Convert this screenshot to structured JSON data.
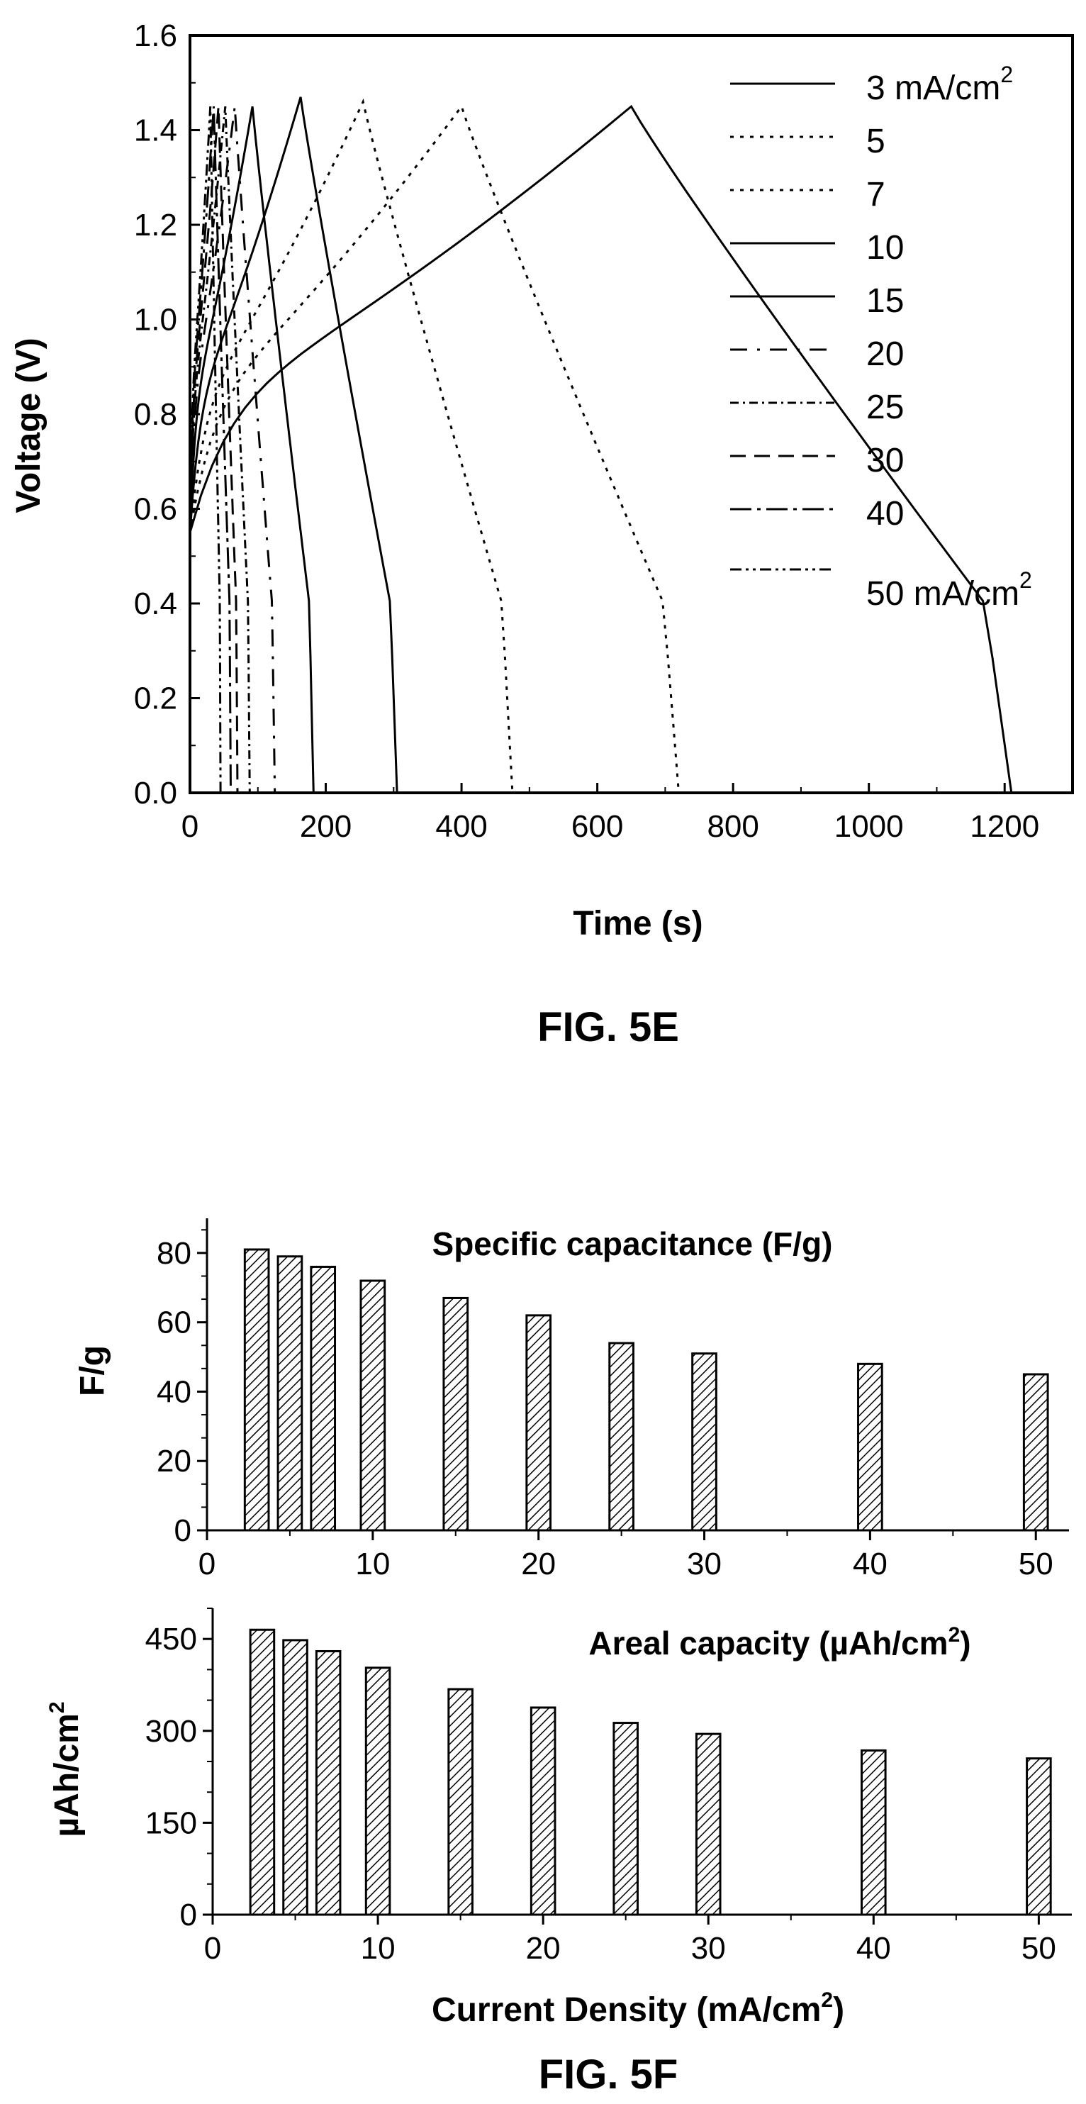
{
  "figures": {
    "fig5e_caption": "FIG. 5E",
    "fig5f_caption": "FIG. 5F"
  },
  "chart_data": [
    {
      "type": "line",
      "xlabel": "Time (s)",
      "ylabel": "Voltage (V)",
      "xlim": [
        0,
        1300
      ],
      "ylim": [
        0,
        1.6
      ],
      "x_ticks": [
        "0",
        "200",
        "400",
        "600",
        "800",
        "1000",
        "1200"
      ],
      "y_ticks": [
        "0.0",
        "0.2",
        "0.4",
        "0.6",
        "0.8",
        "1.0",
        "1.2",
        "1.4",
        "1.6"
      ],
      "legend_position": "top-right",
      "series": [
        {
          "name": "3 mA/cm",
          "name_sup": "2",
          "peak_time": 650,
          "end_time": 1210,
          "peak_v": 1.45
        },
        {
          "name": "5",
          "peak_time": 400,
          "end_time": 720,
          "peak_v": 1.45
        },
        {
          "name": "7",
          "peak_time": 255,
          "end_time": 475,
          "peak_v": 1.46
        },
        {
          "name": "10",
          "peak_time": 163,
          "end_time": 305,
          "peak_v": 1.47
        },
        {
          "name": "15",
          "peak_time": 92,
          "end_time": 182,
          "peak_v": 1.45
        },
        {
          "name": "20",
          "peak_time": 66,
          "end_time": 125,
          "peak_v": 1.45
        },
        {
          "name": "25",
          "peak_time": 52,
          "end_time": 88,
          "peak_v": 1.45
        },
        {
          "name": "30",
          "peak_time": 42,
          "end_time": 70,
          "peak_v": 1.45
        },
        {
          "name": "40",
          "peak_time": 35,
          "end_time": 60,
          "peak_v": 1.45
        },
        {
          "name": "50 mA/cm",
          "name_sup": "2",
          "peak_time": 30,
          "end_time": 45,
          "peak_v": 1.45
        }
      ]
    },
    {
      "type": "bar",
      "title": "Specific capacitance (F/g)",
      "ylabel": "F/g",
      "xlim": [
        0,
        52
      ],
      "ylim": [
        0,
        90
      ],
      "x_ticks": [
        "0",
        "10",
        "20",
        "30",
        "40",
        "50"
      ],
      "y_ticks": [
        "0",
        "20",
        "40",
        "60",
        "80"
      ],
      "x": [
        3,
        5,
        7,
        10,
        15,
        20,
        25,
        30,
        40,
        50
      ],
      "values": [
        81,
        79,
        76,
        72,
        67,
        62,
        54,
        51,
        48,
        45
      ]
    },
    {
      "type": "bar",
      "title": "Areal capacity (µAh/cm",
      "title_sup": "2",
      "title_end": ")",
      "xlabel": "Current Density (mA/cm",
      "xlabel_sup": "2",
      "xlabel_end": ")",
      "ylabel": "µAh/cm",
      "ylabel_sup": "2",
      "xlim": [
        0,
        52
      ],
      "ylim": [
        0,
        500
      ],
      "x_ticks": [
        "0",
        "10",
        "20",
        "30",
        "40",
        "50"
      ],
      "y_ticks": [
        "0",
        "150",
        "300",
        "450"
      ],
      "x": [
        3,
        5,
        7,
        10,
        15,
        20,
        25,
        30,
        40,
        50
      ],
      "values": [
        465,
        448,
        430,
        403,
        368,
        338,
        313,
        295,
        268,
        255
      ]
    }
  ]
}
